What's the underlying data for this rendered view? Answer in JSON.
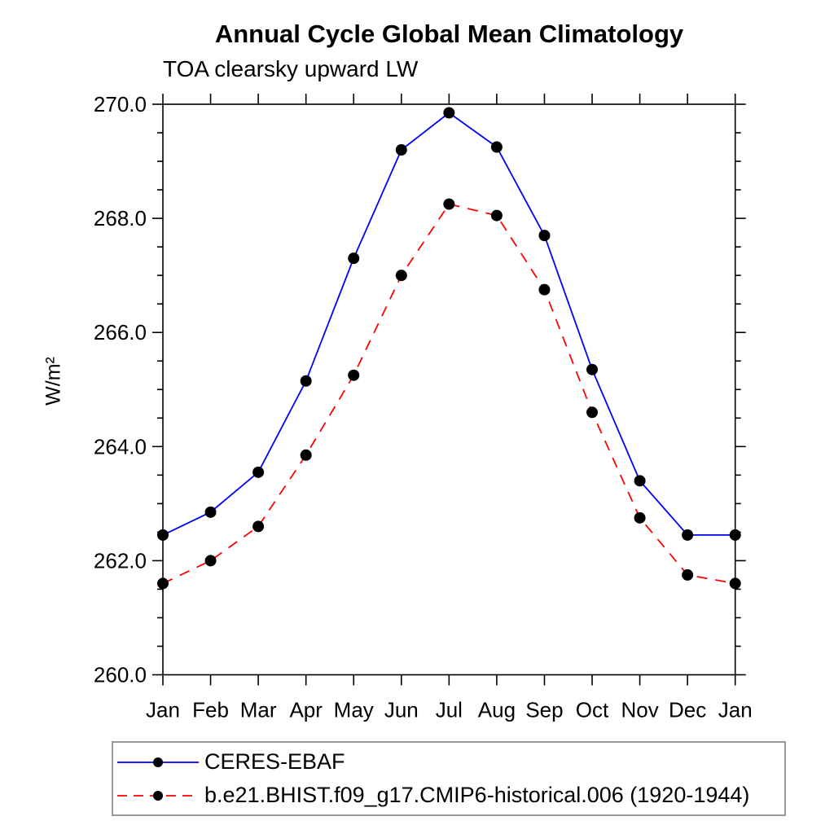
{
  "chart_data": {
    "type": "line",
    "title": "Annual Cycle Global Mean Climatology",
    "subtitle": "TOA clearsky upward LW",
    "ylabel": "W/m²",
    "categories": [
      "Jan",
      "Feb",
      "Mar",
      "Apr",
      "May",
      "Jun",
      "Jul",
      "Aug",
      "Sep",
      "Oct",
      "Nov",
      "Dec",
      "Jan"
    ],
    "ylim": [
      260.0,
      270.0
    ],
    "ytick_interval": 2.0,
    "ytick_minor_interval": 0.5,
    "ytick_labels": [
      "260.0",
      "262.0",
      "264.0",
      "266.0",
      "268.0",
      "270.0"
    ],
    "grid": false,
    "legend_position": "bottom-left",
    "axis_color": "#000000",
    "marker": {
      "shape": "circle",
      "color": "#000000",
      "radius": 7
    },
    "series": [
      {
        "name": "CERES-EBAF",
        "color": "#0000ff",
        "style": "solid",
        "values": [
          262.45,
          262.85,
          263.55,
          265.15,
          267.3,
          269.2,
          269.85,
          269.25,
          267.7,
          265.35,
          263.4,
          262.45,
          262.45
        ]
      },
      {
        "name": "b.e21.BHIST.f09_g17.CMIP6-historical.006 (1920-1944)",
        "color": "#ff0000",
        "style": "dashed",
        "values": [
          261.6,
          262.0,
          262.6,
          263.85,
          265.25,
          267.0,
          268.25,
          268.05,
          266.75,
          264.6,
          262.75,
          261.75,
          261.6
        ]
      }
    ]
  }
}
